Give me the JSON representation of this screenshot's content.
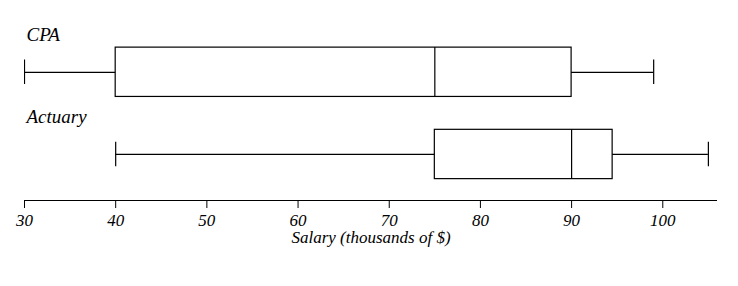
{
  "chart_data": {
    "type": "boxplot",
    "categories": [
      "CPA",
      "Actuary"
    ],
    "min": [
      30,
      40
    ],
    "q1": [
      40,
      75
    ],
    "median": [
      75,
      90
    ],
    "q3": [
      90,
      94.5
    ],
    "max": [
      99,
      105
    ],
    "x_label": "Salary (thousands of $)",
    "xlim": [
      30,
      106
    ],
    "xticks": [
      30,
      40,
      50,
      60,
      70,
      80,
      90,
      100
    ],
    "tick_labels": "x",
    "grid": false,
    "color": "#000000"
  }
}
